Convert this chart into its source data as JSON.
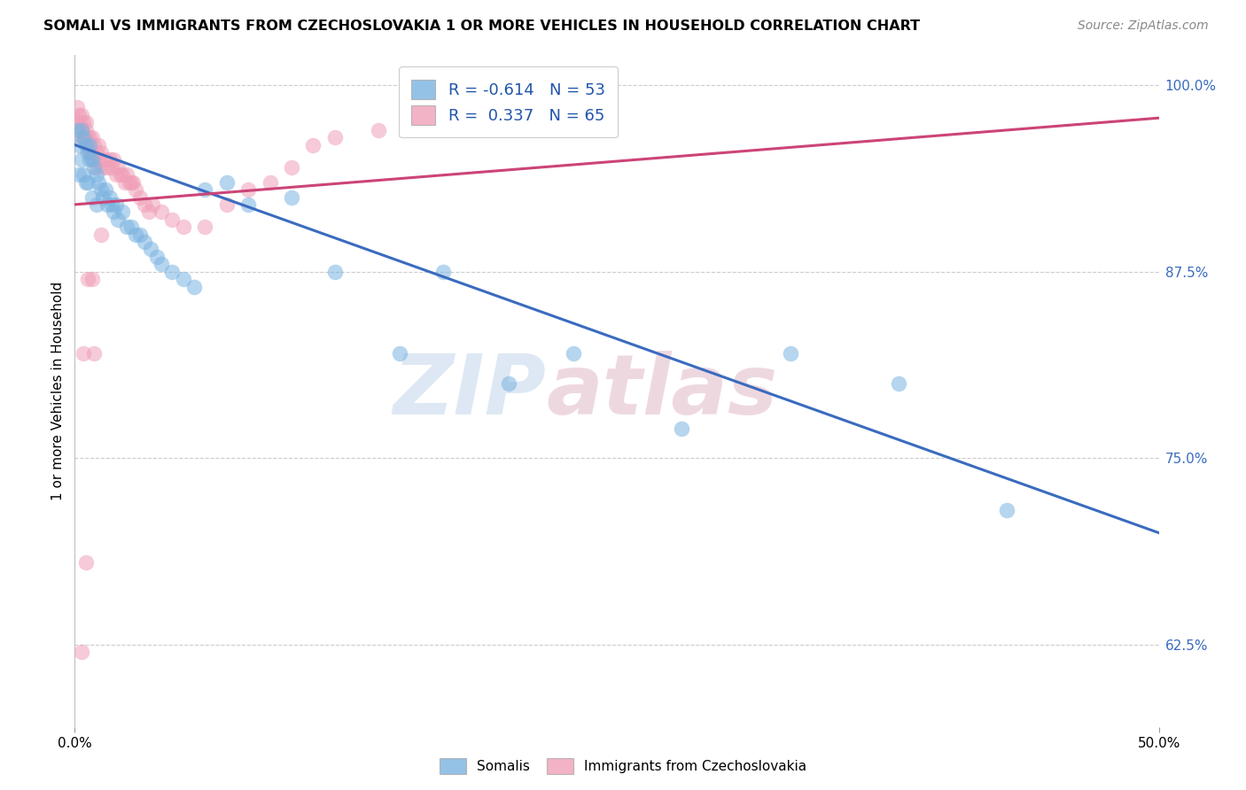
{
  "title": "SOMALI VS IMMIGRANTS FROM CZECHOSLOVAKIA 1 OR MORE VEHICLES IN HOUSEHOLD CORRELATION CHART",
  "source": "Source: ZipAtlas.com",
  "ylabel": "1 or more Vehicles in Household",
  "watermark_zip": "ZIP",
  "watermark_atlas": "atlas",
  "xlim": [
    0.0,
    0.5
  ],
  "ylim": [
    0.57,
    1.02
  ],
  "yticks": [
    0.625,
    0.75,
    0.875,
    1.0
  ],
  "ytick_labels": [
    "62.5%",
    "75.0%",
    "87.5%",
    "100.0%"
  ],
  "somali_color": "#7ab3e0",
  "somali_edge_color": "#5a93c0",
  "czech_color": "#f0a0b8",
  "czech_edge_color": "#d08098",
  "somali_R": -0.614,
  "somali_N": 53,
  "czech_R": 0.337,
  "czech_N": 65,
  "somali_line_color": "#3a6bbf",
  "czech_line_color": "#cc4477",
  "legend_label_somali": "Somalis",
  "legend_label_czech": "Immigrants from Czechoslovakia",
  "somali_line_x0": 0.0,
  "somali_line_y0": 0.96,
  "somali_line_x1": 0.5,
  "somali_line_y1": 0.7,
  "czech_line_x0": 0.0,
  "czech_line_y0": 0.92,
  "czech_line_x1": 0.5,
  "czech_line_y1": 0.978,
  "somali_scatter_x": [
    0.001,
    0.002,
    0.002,
    0.003,
    0.003,
    0.004,
    0.004,
    0.005,
    0.005,
    0.006,
    0.006,
    0.007,
    0.007,
    0.008,
    0.008,
    0.009,
    0.01,
    0.01,
    0.011,
    0.012,
    0.013,
    0.014,
    0.015,
    0.016,
    0.017,
    0.018,
    0.019,
    0.02,
    0.022,
    0.024,
    0.026,
    0.028,
    0.03,
    0.032,
    0.035,
    0.038,
    0.04,
    0.045,
    0.05,
    0.055,
    0.06,
    0.07,
    0.08,
    0.1,
    0.12,
    0.15,
    0.17,
    0.2,
    0.23,
    0.28,
    0.33,
    0.38,
    0.43
  ],
  "somali_scatter_y": [
    0.97,
    0.96,
    0.94,
    0.97,
    0.95,
    0.965,
    0.94,
    0.96,
    0.935,
    0.955,
    0.935,
    0.95,
    0.96,
    0.95,
    0.925,
    0.945,
    0.94,
    0.92,
    0.935,
    0.93,
    0.925,
    0.93,
    0.92,
    0.925,
    0.92,
    0.915,
    0.92,
    0.91,
    0.915,
    0.905,
    0.905,
    0.9,
    0.9,
    0.895,
    0.89,
    0.885,
    0.88,
    0.875,
    0.87,
    0.865,
    0.93,
    0.935,
    0.92,
    0.925,
    0.875,
    0.82,
    0.875,
    0.8,
    0.82,
    0.77,
    0.82,
    0.8,
    0.715
  ],
  "czech_scatter_x": [
    0.001,
    0.001,
    0.002,
    0.002,
    0.003,
    0.003,
    0.003,
    0.004,
    0.004,
    0.005,
    0.005,
    0.005,
    0.006,
    0.006,
    0.007,
    0.007,
    0.008,
    0.008,
    0.009,
    0.009,
    0.01,
    0.01,
    0.011,
    0.011,
    0.012,
    0.013,
    0.014,
    0.015,
    0.016,
    0.017,
    0.018,
    0.019,
    0.02,
    0.021,
    0.022,
    0.023,
    0.024,
    0.025,
    0.026,
    0.027,
    0.028,
    0.03,
    0.032,
    0.034,
    0.036,
    0.04,
    0.045,
    0.05,
    0.06,
    0.07,
    0.08,
    0.09,
    0.1,
    0.11,
    0.12,
    0.14,
    0.16,
    0.18,
    0.004,
    0.008,
    0.012,
    0.005,
    0.003,
    0.006,
    0.009
  ],
  "czech_scatter_y": [
    0.975,
    0.985,
    0.975,
    0.98,
    0.98,
    0.97,
    0.965,
    0.975,
    0.965,
    0.975,
    0.965,
    0.97,
    0.965,
    0.96,
    0.965,
    0.955,
    0.965,
    0.955,
    0.96,
    0.95,
    0.955,
    0.945,
    0.96,
    0.95,
    0.955,
    0.945,
    0.95,
    0.945,
    0.95,
    0.945,
    0.95,
    0.94,
    0.945,
    0.94,
    0.94,
    0.935,
    0.94,
    0.935,
    0.935,
    0.935,
    0.93,
    0.925,
    0.92,
    0.915,
    0.92,
    0.915,
    0.91,
    0.905,
    0.905,
    0.92,
    0.93,
    0.935,
    0.945,
    0.96,
    0.965,
    0.97,
    0.975,
    0.98,
    0.82,
    0.87,
    0.9,
    0.68,
    0.62,
    0.87,
    0.82
  ]
}
